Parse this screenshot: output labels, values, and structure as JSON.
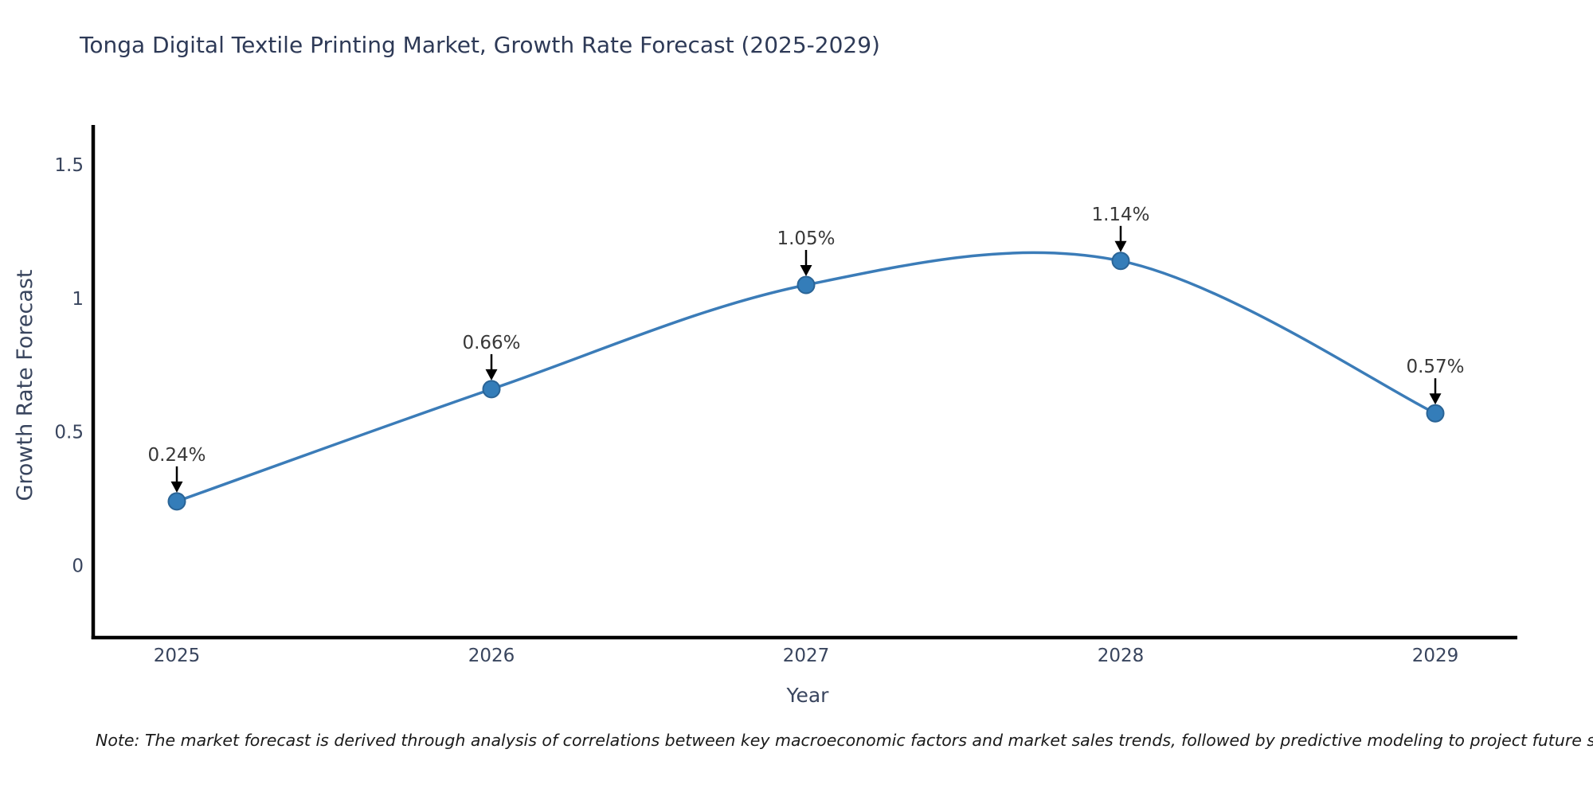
{
  "title": "Tonga Digital Textile Printing Market, Growth Rate Forecast (2025-2029)",
  "note": {
    "text": "Note: The market forecast is derived through analysis of correlations between key macroeconomic factors and market sales trends, followed by predictive modeling to project future sales"
  },
  "chart_data": {
    "type": "line",
    "title": "Tonga Digital Textile Printing Market, Growth Rate Forecast (2025-2029)",
    "x": [
      2025,
      2026,
      2027,
      2028,
      2029
    ],
    "xtick_labels": [
      "2025",
      "2026",
      "2027",
      "2028",
      "2029"
    ],
    "values": [
      0.24,
      0.66,
      1.05,
      1.14,
      0.57
    ],
    "point_labels": [
      "0.24%",
      "0.66%",
      "1.05%",
      "1.14%",
      "0.57%"
    ],
    "xlabel": "Year",
    "ylabel": "Growth Rate Forecast",
    "yticks": [
      0,
      0.5,
      1,
      1.5
    ],
    "ytick_labels": [
      "0",
      "0.5",
      "1",
      "1.5"
    ],
    "ylim": [
      -0.27,
      1.65
    ],
    "grid": false,
    "legend": "none",
    "smooth": true,
    "colors": {
      "line": "#3b7cb8",
      "marker_fill": "#347db9",
      "marker_edge": "#2a6496",
      "axis": "#000000",
      "annotation_text": "#383838",
      "annotation_arrow": "#000000",
      "title_text": "#2e3a57",
      "tick_text": "#39455e",
      "background": "#ffffff"
    }
  }
}
